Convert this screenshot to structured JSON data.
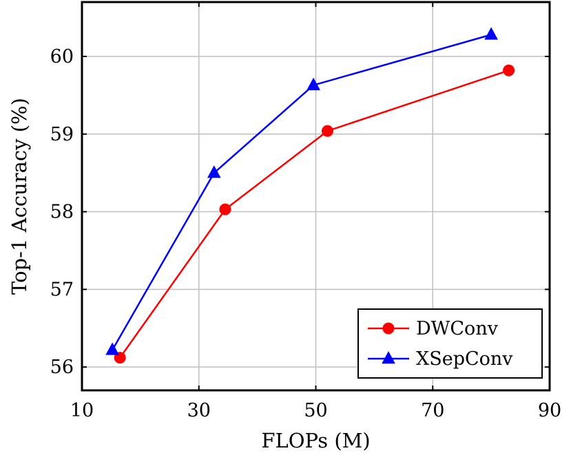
{
  "chart_data": {
    "type": "line",
    "title": "",
    "xlabel": "FLOPs (M)",
    "ylabel": "Top-1 Accuracy (%)",
    "xlim": [
      10,
      90
    ],
    "ylim": [
      55.7,
      60.7
    ],
    "x_ticks": [
      10,
      30,
      50,
      70,
      90
    ],
    "y_ticks": [
      56,
      57,
      58,
      59,
      60
    ],
    "x_tick_labels": [
      "10",
      "30",
      "50",
      "70",
      "90"
    ],
    "y_tick_labels": [
      "56",
      "57",
      "58",
      "59",
      "60"
    ],
    "grid": true,
    "legend_position": "bottom-right",
    "series": [
      {
        "name": "DWConv",
        "color": "#ff0000",
        "marker": "circle",
        "points": [
          {
            "x": 16.5,
            "y": 56.12
          },
          {
            "x": 34.5,
            "y": 58.03
          },
          {
            "x": 52.0,
            "y": 59.04
          },
          {
            "x": 83.0,
            "y": 59.82
          }
        ]
      },
      {
        "name": "XSepConv",
        "color": "#0000ff",
        "marker": "triangle",
        "points": [
          {
            "x": 15.2,
            "y": 56.22
          },
          {
            "x": 32.6,
            "y": 58.5
          },
          {
            "x": 49.6,
            "y": 59.63
          },
          {
            "x": 80.0,
            "y": 60.28
          }
        ]
      }
    ]
  }
}
